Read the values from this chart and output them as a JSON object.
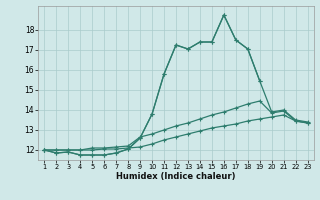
{
  "x": [
    1,
    2,
    3,
    4,
    5,
    6,
    7,
    8,
    9,
    10,
    11,
    12,
    13,
    14,
    15,
    16,
    17,
    18,
    19,
    20,
    21,
    22,
    23
  ],
  "line1": [
    12.0,
    11.85,
    11.9,
    11.75,
    11.75,
    11.75,
    11.85,
    12.05,
    12.6,
    13.8,
    15.8,
    17.25,
    17.05,
    17.4,
    17.4,
    18.75,
    17.5,
    17.05,
    15.45,
    13.9,
    14.0,
    13.5,
    13.4
  ],
  "line2": [
    12.0,
    11.85,
    11.9,
    11.75,
    11.75,
    11.75,
    11.85,
    12.05,
    12.6,
    13.8,
    15.8,
    17.25,
    17.05,
    17.4,
    17.4,
    18.75,
    17.5,
    17.05,
    15.45,
    null,
    null,
    null,
    null
  ],
  "line3": [
    12.0,
    12.0,
    12.0,
    12.0,
    12.1,
    12.1,
    12.15,
    12.2,
    12.65,
    12.8,
    13.0,
    13.2,
    13.35,
    13.55,
    13.75,
    13.9,
    14.1,
    14.3,
    14.45,
    13.85,
    13.95,
    13.45,
    13.35
  ],
  "line4": [
    12.0,
    12.0,
    12.0,
    12.0,
    12.0,
    12.05,
    12.05,
    12.1,
    12.15,
    12.3,
    12.5,
    12.65,
    12.8,
    12.95,
    13.1,
    13.2,
    13.3,
    13.45,
    13.55,
    13.65,
    13.75,
    13.45,
    13.35
  ],
  "color": "#2e7d6e",
  "bg_color": "#d0e8e8",
  "grid_color": "#aacccc",
  "xlabel": "Humidex (Indice chaleur)",
  "ylim": [
    11.5,
    19.2
  ],
  "xlim_min": 0.5,
  "xlim_max": 23.5,
  "yticks": [
    12,
    13,
    14,
    15,
    16,
    17,
    18
  ],
  "xticks": [
    1,
    2,
    3,
    4,
    5,
    6,
    7,
    8,
    9,
    10,
    11,
    12,
    13,
    14,
    15,
    16,
    17,
    18,
    19,
    20,
    21,
    22,
    23
  ]
}
